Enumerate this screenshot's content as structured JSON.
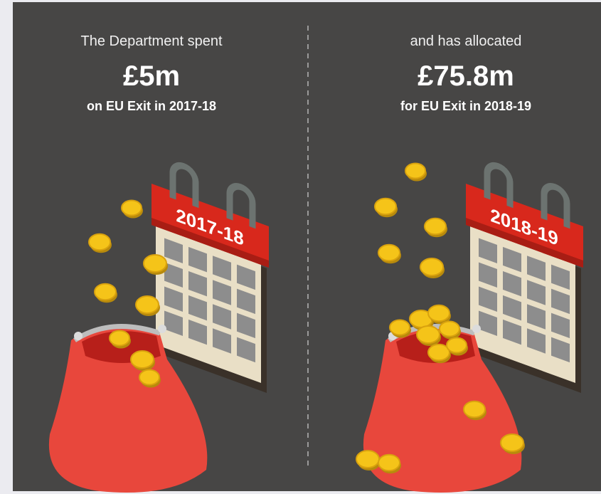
{
  "panels": [
    {
      "intro": "The Department spent",
      "amount": "£5m",
      "caption": "on EU Exit in 2017-18",
      "calendar_label": "2017-18"
    },
    {
      "intro": "and has allocated",
      "amount": "£75.8m",
      "caption": "for EU Exit in 2018-19",
      "calendar_label": "2018-19"
    }
  ]
}
